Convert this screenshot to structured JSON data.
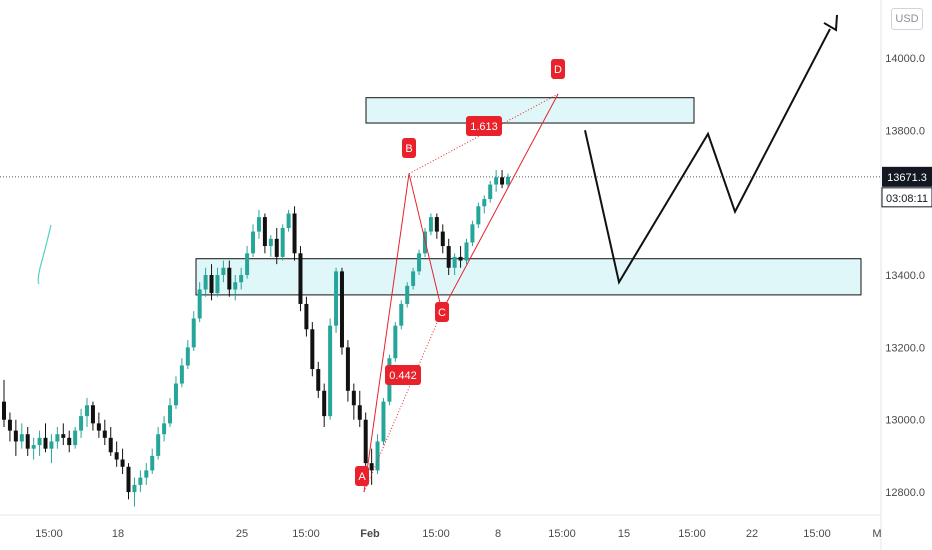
{
  "currency": {
    "label": "USD"
  },
  "price_label": "13671.3",
  "countdown_label": "03:08:11",
  "colors": {
    "bull_candle": "#26a69a",
    "bear_candle": "#111111",
    "pattern": "#e8212b",
    "zone_fill": "#e0f7fa",
    "zone_border": "#111111",
    "projection": "#111111",
    "axis_text": "#4a4a4a",
    "price_line": "#555555"
  },
  "chart_data": {
    "type": "candlestick",
    "y_axis": {
      "ticks": [
        "14000.0",
        "13800.0",
        "13600.0",
        "13400.0",
        "13200.0",
        "13000.0",
        "12800.0"
      ],
      "tick_values": [
        14000,
        13800,
        13600,
        13400,
        13200,
        13000,
        12800
      ],
      "range": [
        12640,
        14160
      ]
    },
    "x_axis": {
      "ticks": [
        "15:00",
        "18",
        "25",
        "15:00",
        "Feb",
        "15:00",
        "8",
        "15:00",
        "15",
        "15:00",
        "22",
        "15:00",
        "M"
      ],
      "bold_ticks": [
        "Feb"
      ]
    },
    "current_price": 13671.3,
    "ohlc": [
      [
        13050,
        13110,
        12980,
        13000
      ],
      [
        13000,
        13020,
        12940,
        12970
      ],
      [
        12970,
        13000,
        12900,
        12940
      ],
      [
        12940,
        12990,
        12920,
        12960
      ],
      [
        12960,
        12980,
        12900,
        12920
      ],
      [
        12920,
        12950,
        12890,
        12930
      ],
      [
        12930,
        12970,
        12900,
        12950
      ],
      [
        12950,
        12990,
        12910,
        12920
      ],
      [
        12920,
        12960,
        12880,
        12940
      ],
      [
        12940,
        12980,
        12920,
        12960
      ],
      [
        12960,
        12990,
        12930,
        12950
      ],
      [
        12950,
        12970,
        12910,
        12930
      ],
      [
        12930,
        12980,
        12920,
        12970
      ],
      [
        12970,
        13030,
        12950,
        13010
      ],
      [
        13010,
        13060,
        12980,
        13040
      ],
      [
        13040,
        13050,
        12970,
        12990
      ],
      [
        12990,
        13020,
        12950,
        12970
      ],
      [
        12970,
        13000,
        12930,
        12950
      ],
      [
        12950,
        12980,
        12900,
        12910
      ],
      [
        12910,
        12940,
        12870,
        12890
      ],
      [
        12890,
        12920,
        12850,
        12870
      ],
      [
        12870,
        12880,
        12780,
        12800
      ],
      [
        12800,
        12840,
        12760,
        12820
      ],
      [
        12820,
        12860,
        12800,
        12840
      ],
      [
        12840,
        12880,
        12820,
        12860
      ],
      [
        12860,
        12920,
        12850,
        12900
      ],
      [
        12900,
        12980,
        12890,
        12960
      ],
      [
        12960,
        13010,
        12940,
        12990
      ],
      [
        12990,
        13060,
        12980,
        13040
      ],
      [
        13040,
        13120,
        13030,
        13100
      ],
      [
        13100,
        13170,
        13090,
        13150
      ],
      [
        13150,
        13220,
        13140,
        13200
      ],
      [
        13200,
        13300,
        13190,
        13280
      ],
      [
        13280,
        13380,
        13270,
        13360
      ],
      [
        13360,
        13420,
        13340,
        13400
      ],
      [
        13400,
        13430,
        13330,
        13350
      ],
      [
        13350,
        13420,
        13340,
        13400
      ],
      [
        13400,
        13440,
        13380,
        13420
      ],
      [
        13420,
        13440,
        13340,
        13360
      ],
      [
        13360,
        13400,
        13330,
        13380
      ],
      [
        13380,
        13420,
        13360,
        13400
      ],
      [
        13400,
        13480,
        13390,
        13460
      ],
      [
        13460,
        13540,
        13450,
        13520
      ],
      [
        13520,
        13580,
        13500,
        13560
      ],
      [
        13560,
        13570,
        13460,
        13480
      ],
      [
        13480,
        13510,
        13450,
        13500
      ],
      [
        13500,
        13530,
        13430,
        13450
      ],
      [
        13450,
        13540,
        13440,
        13530
      ],
      [
        13530,
        13580,
        13520,
        13570
      ],
      [
        13570,
        13590,
        13440,
        13460
      ],
      [
        13460,
        13480,
        13300,
        13320
      ],
      [
        13320,
        13340,
        13230,
        13250
      ],
      [
        13250,
        13270,
        13120,
        13140
      ],
      [
        13140,
        13160,
        13060,
        13080
      ],
      [
        13080,
        13100,
        12980,
        13010
      ],
      [
        13010,
        13280,
        13000,
        13260
      ],
      [
        13260,
        13420,
        13240,
        13410
      ],
      [
        13410,
        13420,
        13180,
        13200
      ],
      [
        13200,
        13220,
        13050,
        13080
      ],
      [
        13080,
        13100,
        13000,
        13040
      ],
      [
        13040,
        13080,
        12980,
        13000
      ],
      [
        13000,
        13020,
        12860,
        12880
      ],
      [
        12880,
        12920,
        12820,
        12860
      ],
      [
        12860,
        12960,
        12850,
        12940
      ],
      [
        12940,
        13060,
        12930,
        13050
      ],
      [
        13050,
        13180,
        13040,
        13170
      ],
      [
        13170,
        13270,
        13160,
        13260
      ],
      [
        13260,
        13330,
        13250,
        13320
      ],
      [
        13320,
        13380,
        13310,
        13370
      ],
      [
        13370,
        13420,
        13360,
        13410
      ],
      [
        13410,
        13470,
        13400,
        13460
      ],
      [
        13460,
        13530,
        13450,
        13520
      ],
      [
        13520,
        13570,
        13510,
        13560
      ],
      [
        13560,
        13570,
        13500,
        13520
      ],
      [
        13520,
        13540,
        13460,
        13480
      ],
      [
        13480,
        13500,
        13400,
        13420
      ],
      [
        13420,
        13460,
        13400,
        13450
      ],
      [
        13450,
        13480,
        13420,
        13440
      ],
      [
        13440,
        13500,
        13430,
        13490
      ],
      [
        13490,
        13550,
        13480,
        13540
      ],
      [
        13540,
        13600,
        13530,
        13590
      ],
      [
        13590,
        13620,
        13570,
        13610
      ],
      [
        13610,
        13660,
        13600,
        13650
      ],
      [
        13650,
        13690,
        13630,
        13670
      ],
      [
        13670,
        13690,
        13640,
        13650
      ],
      [
        13650,
        13680,
        13640,
        13671.3
      ]
    ],
    "harmonic_points": [
      {
        "label": "A",
        "value": 12800
      },
      {
        "label": "B",
        "value": 13680
      },
      {
        "label": "C",
        "value": 13300
      },
      {
        "label": "D",
        "value": 13900
      }
    ],
    "fib_ratios": [
      "0.442",
      "1.613"
    ],
    "zones": [
      {
        "name": "upper-zone",
        "top": 13890,
        "bottom": 13820
      },
      {
        "name": "lower-zone",
        "top": 13445,
        "bottom": 13345
      }
    ],
    "projection_path_values": [
      13800,
      13380,
      13790,
      13575,
      14080
    ]
  }
}
